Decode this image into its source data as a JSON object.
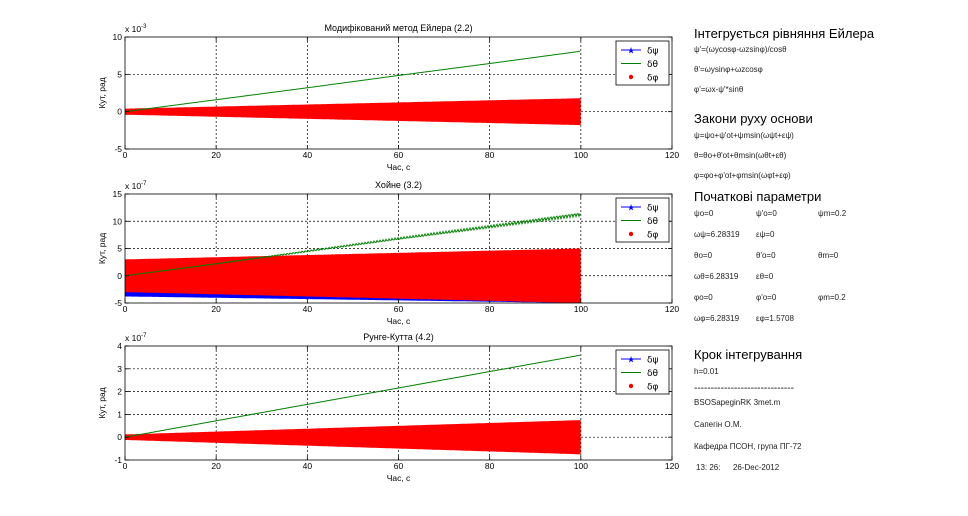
{
  "chart_data": [
    {
      "type": "line",
      "title": "Модифікований метод Ейлера (2.2)",
      "xlabel": "Час, с",
      "ylabel": "Кут, рад",
      "exponent": "x 10",
      "exponent_power": "-3",
      "xlim": [
        0,
        120
      ],
      "ylim": [
        -5,
        10
      ],
      "xticks": [
        0,
        20,
        40,
        60,
        80,
        100,
        120
      ],
      "yticks": [
        -5,
        0,
        5,
        10
      ],
      "grid": true,
      "legend_position": "top-right",
      "series": [
        {
          "name": "δψ",
          "color": "#0000ff",
          "style": "stars",
          "x": [
            0,
            100
          ],
          "y": [
            -0.3,
            -0.2
          ],
          "amplitude": [
            0.1,
            0.1
          ]
        },
        {
          "name": "δθ",
          "color": "#008000",
          "style": "line",
          "x": [
            0,
            20,
            40,
            60,
            80,
            100
          ],
          "y": [
            0,
            1.6,
            3.2,
            4.85,
            6.45,
            8.1
          ]
        },
        {
          "name": "δφ",
          "color": "#ff0000",
          "style": "dots",
          "x": [
            0,
            100
          ],
          "y": [
            0,
            0
          ],
          "amplitude": [
            0.4,
            1.8
          ]
        }
      ]
    },
    {
      "type": "line",
      "title": "Хойне (3.2)",
      "xlabel": "Час, с",
      "ylabel": "Кут, рад",
      "exponent": "x 10",
      "exponent_power": "-7",
      "xlim": [
        0,
        120
      ],
      "ylim": [
        -5,
        15
      ],
      "xticks": [
        0,
        20,
        40,
        60,
        80,
        100,
        120
      ],
      "yticks": [
        -5,
        0,
        5,
        10,
        15
      ],
      "grid": true,
      "legend_position": "top-right",
      "series": [
        {
          "name": "δψ",
          "color": "#0000ff",
          "style": "stars",
          "x": [
            0,
            100
          ],
          "y": [
            -3.2,
            -4.1
          ],
          "amplitude": [
            0.6,
            0.9
          ]
        },
        {
          "name": "δθ",
          "color": "#008000",
          "style": "line",
          "x": [
            0,
            20,
            40,
            60,
            80,
            100
          ],
          "y": [
            0,
            2.2,
            4.5,
            6.8,
            9.0,
            11.3
          ]
        },
        {
          "name": "δφ",
          "color": "#ff0000",
          "style": "dots",
          "x": [
            0,
            100
          ],
          "y": [
            0,
            0
          ],
          "amplitude": [
            3.0,
            5.0
          ]
        }
      ]
    },
    {
      "type": "line",
      "title": "Рунге-Кутта (4.2)",
      "xlabel": "Час, с",
      "ylabel": "Кут, рад",
      "exponent": "x 10",
      "exponent_power": "-7",
      "xlim": [
        0,
        120
      ],
      "ylim": [
        -1,
        4
      ],
      "xticks": [
        0,
        20,
        40,
        60,
        80,
        100,
        120
      ],
      "yticks": [
        -1,
        0,
        1,
        2,
        3,
        4
      ],
      "grid": true,
      "legend_position": "top-right",
      "series": [
        {
          "name": "δψ",
          "color": "#0000ff",
          "style": "stars",
          "x": [
            0,
            100
          ],
          "y": [
            -0.02,
            -0.05
          ],
          "amplitude": [
            0.03,
            0.05
          ]
        },
        {
          "name": "δθ",
          "color": "#008000",
          "style": "line",
          "x": [
            0,
            20,
            40,
            60,
            80,
            100
          ],
          "y": [
            0,
            0.72,
            1.44,
            2.16,
            2.88,
            3.6
          ]
        },
        {
          "name": "δφ",
          "color": "#ff0000",
          "style": "dots",
          "x": [
            0,
            100
          ],
          "y": [
            0,
            0
          ],
          "amplitude": [
            0.12,
            0.75
          ]
        }
      ]
    }
  ],
  "panel": {
    "eq_title": "Інтегрується рівняння Ейлера",
    "eq_lines": [
      "ψ'=(ωycosφ-ωzsinφ)/cosθ",
      "θ'=ωysinφ+ωzcosφ",
      "φ'=ωx-ψ'*sinθ"
    ],
    "law_title": "Закони руху основи",
    "law_lines": [
      "ψ=ψo+ψ'ot+ψmsin(ωψt+εψ)",
      "θ=θo+θ'ot+θmsin(ωθt+εθ)",
      "φ=φo+φ'ot+φmsin(ωφt+εφ)"
    ],
    "init_title": "Початкові параметри",
    "init_rows": [
      [
        "ψo=0",
        "ψ'o=0",
        "ψm=0.2"
      ],
      [
        "ωψ=6.28319",
        "εψ=0",
        ""
      ],
      [
        "θo=0",
        "θ'o=0",
        "θm=0"
      ],
      [
        "ωθ=6.28319",
        "εθ=0",
        ""
      ],
      [
        "φo=0",
        "φ'o=0",
        "φm=0.2"
      ],
      [
        "ωφ=6.28319",
        "εφ=1.5708",
        ""
      ]
    ],
    "step_title": "Крок інтегрування",
    "step_value": "h=0.01",
    "separator": "------------------------------",
    "file_name": "BSOSapeginRK 3met.m",
    "author": "Сапегін О.М.",
    "department": "Кафедра ПСОН, група ПГ-72",
    "time": "13: 26:",
    "date": "26-Dec-2012"
  }
}
